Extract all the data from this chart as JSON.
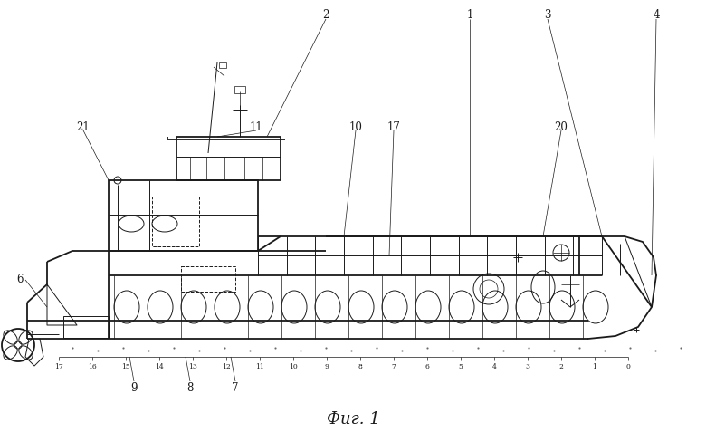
{
  "title": "Фиг. 1",
  "title_fontsize": 13,
  "bg_color": "#ffffff",
  "line_color": "#1a1a1a",
  "figsize": [
    7.8,
    4.89
  ],
  "dpi": 100
}
